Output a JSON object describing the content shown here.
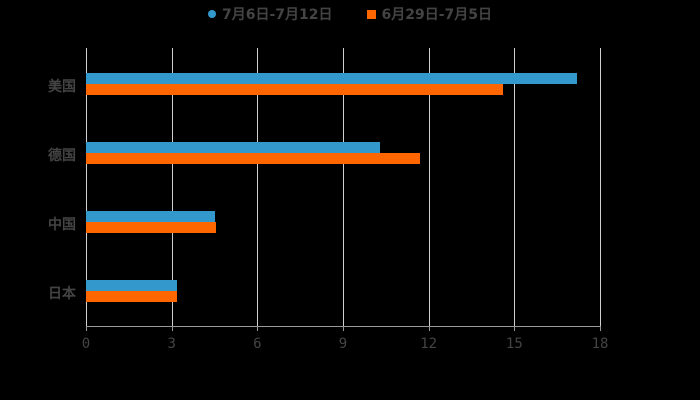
{
  "chart_data": {
    "type": "bar",
    "orientation": "horizontal",
    "categories": [
      "美国",
      "德国",
      "中国",
      "日本"
    ],
    "series": [
      {
        "name": "7月6日-7月12日",
        "color": "#3399cc",
        "values": [
          17.2,
          10.3,
          4.5,
          3.2
        ]
      },
      {
        "name": "6月29日-7月5日",
        "color": "#ff6600",
        "values": [
          14.6,
          11.7,
          4.55,
          3.2
        ]
      }
    ],
    "xticks": [
      "0",
      "3",
      "6",
      "9",
      "12",
      "15",
      "18"
    ],
    "xlim": [
      0,
      18
    ],
    "grid": true,
    "legend_position": "top",
    "title": "",
    "xlabel": "",
    "ylabel": ""
  },
  "legend": {
    "s0": "7月6日-7月12日",
    "s1": "6月29日-7月5日"
  }
}
